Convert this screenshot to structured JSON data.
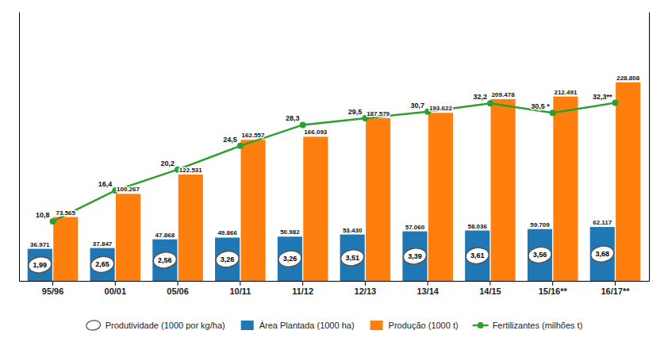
{
  "chart_data": {
    "type": "bar",
    "categories": [
      "95/96",
      "00/01",
      "05/06",
      "10/11",
      "11/12",
      "12/13",
      "13/14",
      "14/15",
      "15/16**",
      "16/17**"
    ],
    "series": [
      {
        "name": "Produtividade (1000 por kg/ha)",
        "type": "annotation",
        "values": [
          1.99,
          2.65,
          2.56,
          3.26,
          3.26,
          3.51,
          3.39,
          3.61,
          3.56,
          3.68
        ],
        "value_labels": [
          "1,99",
          "2,65",
          "2,56",
          "3,26",
          "3,26",
          "3,51",
          "3,39",
          "3,61",
          "3,56",
          "3,68"
        ]
      },
      {
        "name": "Área Plantada (1000 ha)",
        "type": "bar",
        "values": [
          36971,
          37847,
          47868,
          49866,
          50982,
          53430,
          57060,
          58036,
          59709,
          62117
        ],
        "value_labels": [
          "36.971",
          "37.847",
          "47.868",
          "49.866",
          "50.982",
          "53.430",
          "57.060",
          "58.036",
          "59.709",
          "62.117"
        ]
      },
      {
        "name": "Produção (1000 t)",
        "type": "bar",
        "values": [
          73565,
          100267,
          122531,
          162557,
          166093,
          187579,
          193622,
          209478,
          212491,
          228808
        ],
        "value_labels": [
          "73.565",
          "100.267",
          "122.531",
          "162.557",
          "166.093",
          "187.579",
          "193.622",
          "209.478",
          "212.491",
          "228.808"
        ]
      },
      {
        "name": "Fertilizantes (milhões t)",
        "type": "line",
        "axis": "y2",
        "marker": "circle",
        "values": [
          10.8,
          16.4,
          20.2,
          24.5,
          28.3,
          29.5,
          30.7,
          32.2,
          30.5,
          32.3
        ],
        "value_labels": [
          "10,8",
          "16,4",
          "20,2",
          "24,5",
          "28,3",
          "29,5",
          "30,7",
          "32,2",
          "30,5 *",
          "32,3**"
        ]
      }
    ],
    "ylim": [
      0,
      310000
    ],
    "y2lim": [
      0,
      48.8
    ],
    "data_labels": true,
    "tick_labels": "x",
    "grid": false,
    "legend": "bottom"
  }
}
